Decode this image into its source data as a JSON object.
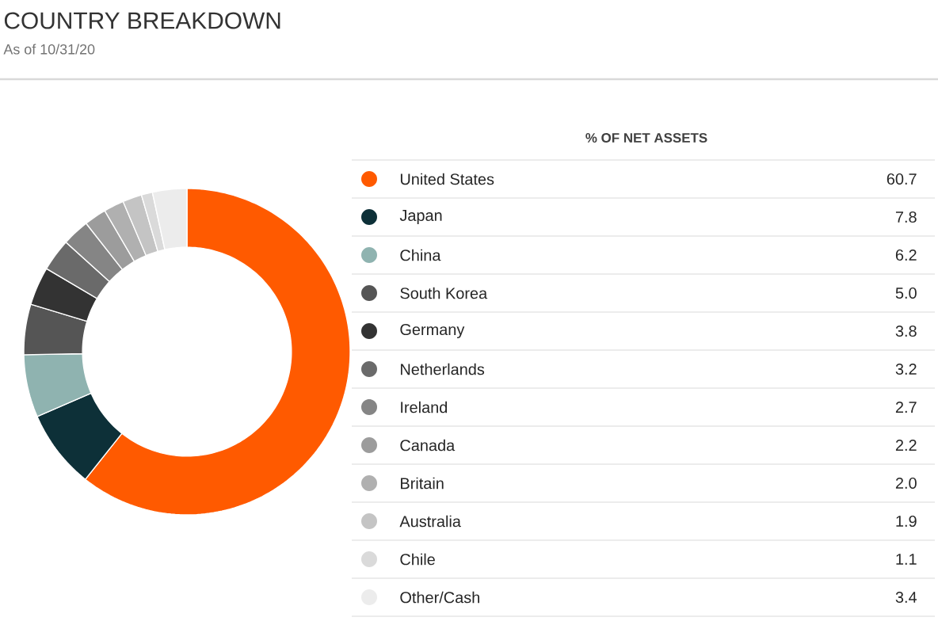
{
  "chart_data": {
    "type": "donut",
    "title": "COUNTRY BREAKDOWN",
    "subtitle": "As of 10/31/20",
    "legend_title": "% OF NET ASSETS",
    "legend": "right",
    "categories": [
      "United States",
      "Japan",
      "China",
      "South Korea",
      "Germany",
      "Netherlands",
      "Ireland",
      "Canada",
      "Britain",
      "Australia",
      "Chile",
      "Other/Cash"
    ],
    "values": [
      60.7,
      7.8,
      6.2,
      5.0,
      3.8,
      3.2,
      2.7,
      2.2,
      2.0,
      1.9,
      1.1,
      3.4
    ],
    "value_labels": [
      "60.7",
      "7.8",
      "6.2",
      "5.0",
      "3.8",
      "3.2",
      "2.7",
      "2.2",
      "2.0",
      "1.9",
      "1.1",
      "3.4"
    ],
    "colors": [
      "#ff5a00",
      "#0d3038",
      "#8fb3b0",
      "#555555",
      "#333333",
      "#6a6a6a",
      "#858585",
      "#9c9c9c",
      "#b0b0b0",
      "#c4c4c4",
      "#dadada",
      "#ececec"
    ]
  }
}
